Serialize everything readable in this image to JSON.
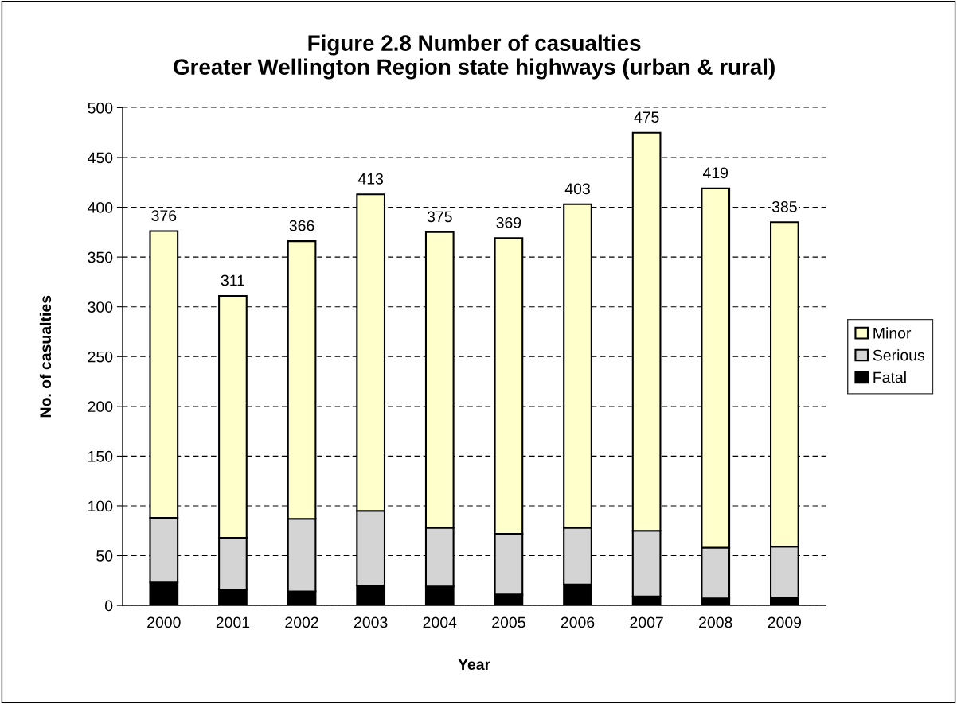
{
  "chart_data": {
    "type": "bar",
    "stacked": true,
    "title": "Figure 2.8 Number of casualties\nGreater Wellington Region state highways (urban & rural)",
    "xlabel": "Year",
    "ylabel": "No. of casualties",
    "categories": [
      "2000",
      "2001",
      "2002",
      "2003",
      "2004",
      "2005",
      "2006",
      "2007",
      "2008",
      "2009"
    ],
    "series": [
      {
        "name": "Fatal",
        "color": "#000000",
        "values": [
          23,
          16,
          14,
          20,
          19,
          11,
          21,
          9,
          7,
          8
        ]
      },
      {
        "name": "Serious",
        "color": "#d4d4d4",
        "values": [
          65,
          52,
          73,
          75,
          59,
          61,
          57,
          66,
          51,
          51
        ]
      },
      {
        "name": "Minor",
        "color": "#ffffcc",
        "values": [
          288,
          243,
          279,
          318,
          297,
          297,
          325,
          400,
          361,
          326
        ]
      }
    ],
    "totals": [
      "376",
      "311",
      "366",
      "413",
      "375",
      "369",
      "403",
      "475",
      "419",
      "385"
    ],
    "ylim": [
      0,
      500
    ],
    "yticks": [
      0,
      50,
      100,
      150,
      200,
      250,
      300,
      350,
      400,
      450,
      500
    ],
    "grid": "y",
    "legend": "right"
  }
}
